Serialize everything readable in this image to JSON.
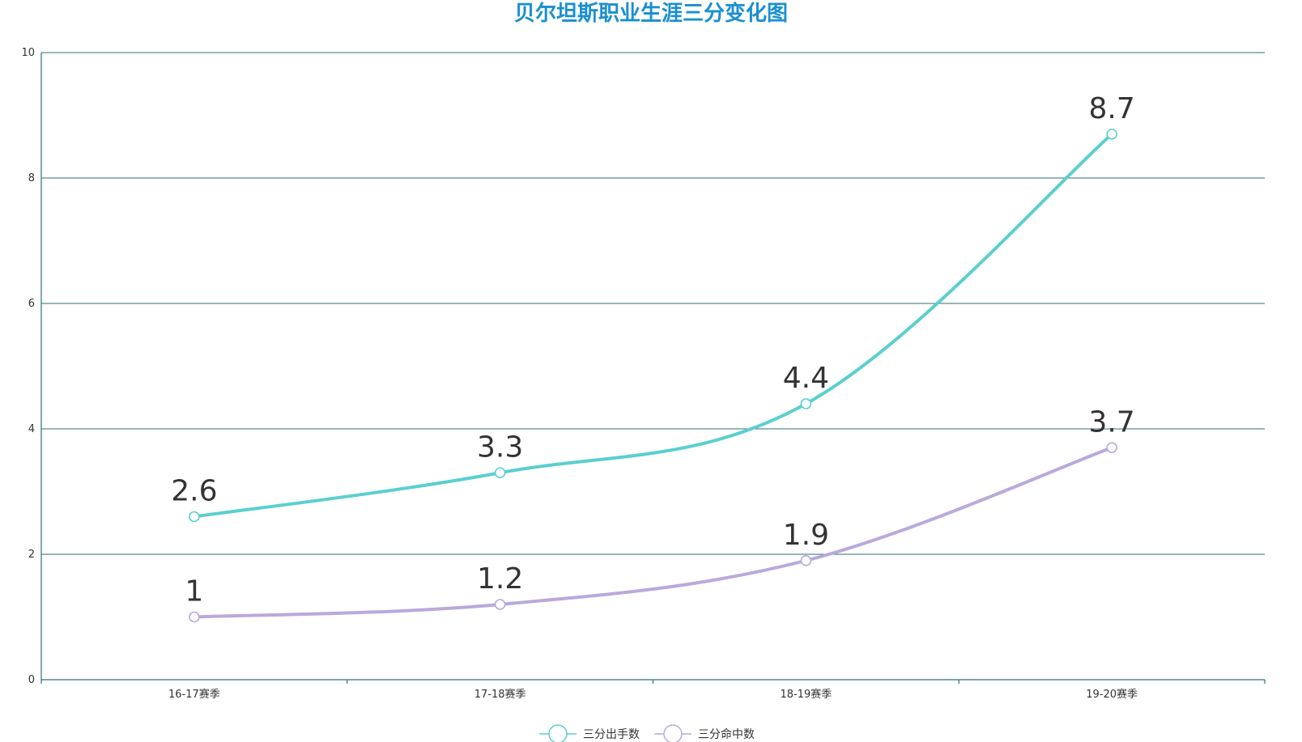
{
  "chart_data": {
    "type": "line",
    "title": "贝尔坦斯职业生涯三分变化图",
    "categories": [
      "16-17赛季",
      "17-18赛季",
      "18-19赛季",
      "19-20赛季"
    ],
    "ylim": [
      0,
      10
    ],
    "yticks": [
      0,
      2,
      4,
      6,
      8,
      10
    ],
    "grid": true,
    "smooth": true,
    "legend_position": "bottom-center",
    "series": [
      {
        "name": "三分出手数",
        "values": [
          2.6,
          3.3,
          4.4,
          8.7
        ],
        "color": "#5bcfcf"
      },
      {
        "name": "三分命中数",
        "values": [
          1,
          1.2,
          1.9,
          3.7
        ],
        "color": "#b9a9dc"
      }
    ]
  }
}
